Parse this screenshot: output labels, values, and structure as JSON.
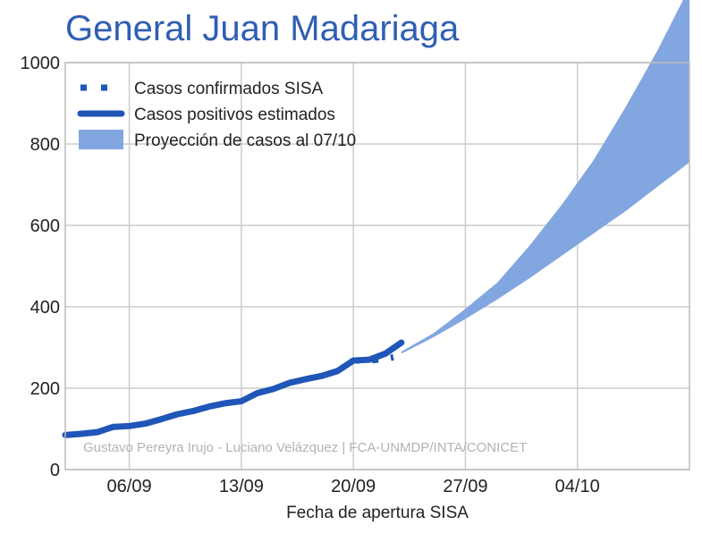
{
  "chart_data": {
    "type": "line",
    "title": "General Juan Madariaga",
    "xlabel": "Fecha de apertura SISA",
    "ylabel": "",
    "xlim": [
      -4,
      35
    ],
    "ylim": [
      0,
      1000
    ],
    "x_ticks": [
      {
        "x": 0,
        "label": "06/09"
      },
      {
        "x": 7,
        "label": "13/09"
      },
      {
        "x": 14,
        "label": "20/09"
      },
      {
        "x": 21,
        "label": "27/09"
      },
      {
        "x": 28,
        "label": "04/10"
      }
    ],
    "y_ticks": [
      0,
      200,
      400,
      600,
      800,
      1000
    ],
    "grid": true,
    "legend_position": "top-left",
    "credit": "Gustavo Pereyra Irujo - Luciano Velázquez | FCA-UNMDP/INTA/CONICET",
    "colors": {
      "title": "#2f5fb3",
      "line": "#1f56b8",
      "band": "#82a6e0",
      "grid": "#cccccc",
      "axis": "#bbbbbb"
    },
    "series": [
      {
        "name": "Casos confirmados SISA",
        "style": "dotted",
        "x": [
          14,
          15,
          16,
          16.5
        ],
        "y": [
          268,
          268,
          272,
          276
        ]
      },
      {
        "name": "Casos positivos estimados",
        "style": "solid",
        "x": [
          -4,
          -3,
          -2,
          -1,
          0,
          1,
          2,
          3,
          4,
          5,
          6,
          7,
          8,
          9,
          10,
          11,
          12,
          13,
          14,
          15,
          16,
          17
        ],
        "y": [
          85,
          88,
          92,
          105,
          107,
          113,
          124,
          136,
          144,
          155,
          163,
          168,
          188,
          198,
          213,
          222,
          230,
          242,
          268,
          270,
          285,
          312
        ]
      },
      {
        "name": "Proyección de casos al 07/10",
        "style": "band",
        "x": [
          17,
          19,
          21,
          23,
          25,
          27,
          29,
          31,
          33,
          35
        ],
        "lower": [
          285,
          325,
          370,
          418,
          470,
          525,
          580,
          635,
          695,
          755
        ],
        "upper": [
          290,
          335,
          395,
          460,
          550,
          650,
          760,
          890,
          1030,
          1185
        ]
      }
    ]
  }
}
